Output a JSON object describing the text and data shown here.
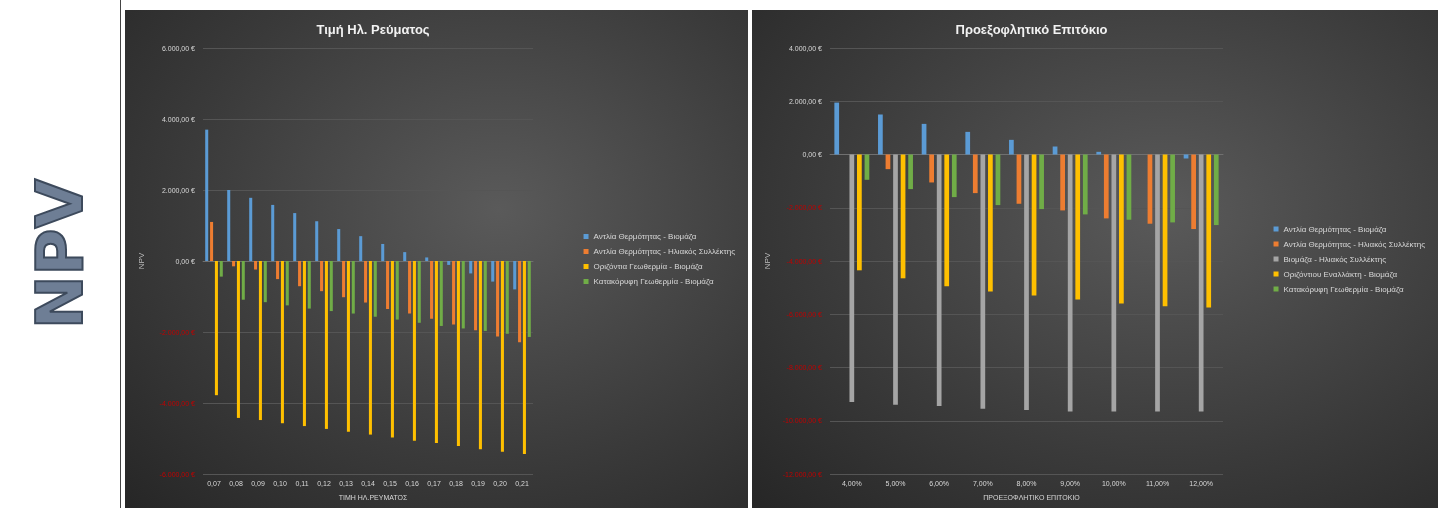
{
  "chart_data": [
    {
      "type": "other",
      "title": "NPV"
    },
    {
      "type": "bar",
      "title": "Τιμή Ηλ. Ρεύματος",
      "xlabel": "ΤΙΜΗ ΗΛ.ΡΕΥΜΑΤΟΣ",
      "ylabel": "NPV",
      "categories": [
        "0,07",
        "0,08",
        "0,09",
        "0,10",
        "0,11",
        "0,12",
        "0,13",
        "0,14",
        "0,15",
        "0,16",
        "0,17",
        "0,18",
        "0,19",
        "0,20",
        "0,21"
      ],
      "series": [
        {
          "name": "Αντλία Θερμότητας - Βιομάζα",
          "color": "#5b9bd5",
          "values": [
            3700,
            2000,
            1780,
            1580,
            1350,
            1120,
            900,
            700,
            480,
            250,
            100,
            -110,
            -350,
            -580,
            -800
          ]
        },
        {
          "name": "Αντλία Θερμότητας - Ηλιακός Συλλέκτης",
          "color": "#ed7d31",
          "values": [
            1100,
            -150,
            -240,
            -510,
            -710,
            -850,
            -1020,
            -1170,
            -1350,
            -1480,
            -1630,
            -1790,
            -1950,
            -2130,
            -2290
          ]
        },
        {
          "name": "Οριζόντια Γεωθερμία - Βιομάζα",
          "color": "#ffc000",
          "values": [
            -3780,
            -4420,
            -4480,
            -4570,
            -4650,
            -4730,
            -4810,
            -4890,
            -4970,
            -5060,
            -5130,
            -5210,
            -5300,
            -5370,
            -5440
          ]
        },
        {
          "name": "Κατακόρυφη Γεωθερμία - Βιομάζα",
          "color": "#70ad47",
          "values": [
            -440,
            -1090,
            -1160,
            -1250,
            -1340,
            -1410,
            -1480,
            -1570,
            -1650,
            -1740,
            -1830,
            -1900,
            -1970,
            -2050,
            -2140
          ]
        }
      ],
      "ylim": [
        -6000,
        6000
      ],
      "yticks": [
        {
          "value": -6000,
          "label": "-6.000,00 €"
        },
        {
          "value": -4000,
          "label": "-4.000,00 €"
        },
        {
          "value": -2000,
          "label": "-2.000,00 €"
        },
        {
          "value": 0,
          "label": "0,00 €"
        },
        {
          "value": 2000,
          "label": "2.000,00 €"
        },
        {
          "value": 4000,
          "label": "4.000,00 €"
        },
        {
          "value": 6000,
          "label": "6.000,00 €"
        }
      ],
      "grid": "y",
      "legend": "right"
    },
    {
      "type": "bar",
      "title": "Προεξοφλητικό Επιτόκιο",
      "xlabel": "ΠΡΟΕΞΟΦΛΗΤΙΚΟ ΕΠΙΤΟΚΙΟ",
      "ylabel": "NPV",
      "categories": [
        "4,00%",
        "5,00%",
        "6,00%",
        "7,00%",
        "8,00%",
        "9,00%",
        "10,00%",
        "11,00%",
        "12,00%"
      ],
      "series": [
        {
          "name": "Αντλία Θερμότητας - Βιομάζα",
          "color": "#5b9bd5",
          "values": [
            1950,
            1500,
            1150,
            850,
            550,
            300,
            100,
            null,
            -150
          ]
        },
        {
          "name": "Αντλία Θερμότητας - Ηλιακός Συλλέκτης",
          "color": "#ed7d31",
          "values": [
            null,
            -550,
            -1050,
            -1450,
            -1850,
            -2100,
            -2400,
            -2600,
            -2800
          ]
        },
        {
          "name": "Βιομάζα - Ηλιακός Συλλέκτης",
          "color": "#a5a5a5",
          "values": [
            -9300,
            -9400,
            -9450,
            -9550,
            -9600,
            -9650,
            -9650,
            -9650,
            -9650
          ]
        },
        {
          "name": "Οριζόντιου Εναλλάκτη - Βιομάζα",
          "color": "#ffc000",
          "values": [
            -4350,
            -4650,
            -4950,
            -5150,
            -5300,
            -5450,
            -5600,
            -5700,
            -5750
          ]
        },
        {
          "name": "Κατακόρυφη Γεωθερμία - Βιομάζα",
          "color": "#70ad47",
          "values": [
            -950,
            -1300,
            -1600,
            -1900,
            -2050,
            -2250,
            -2450,
            -2550,
            -2650
          ]
        }
      ],
      "ylim": [
        -12000,
        4000
      ],
      "yticks": [
        {
          "value": -12000,
          "label": "-12.000,00 €"
        },
        {
          "value": -10000,
          "label": "-10.000,00 €"
        },
        {
          "value": -8000,
          "label": "-8.000,00 €"
        },
        {
          "value": -6000,
          "label": "-6.000,00 €"
        },
        {
          "value": -4000,
          "label": "-4.000,00 €"
        },
        {
          "value": -2000,
          "label": "-2.000,00 €"
        },
        {
          "value": 0,
          "label": "0,00 €"
        },
        {
          "value": 2000,
          "label": "2.000,00 €"
        },
        {
          "value": 4000,
          "label": "4.000,00 €"
        }
      ],
      "grid": "y",
      "legend": "right"
    }
  ]
}
